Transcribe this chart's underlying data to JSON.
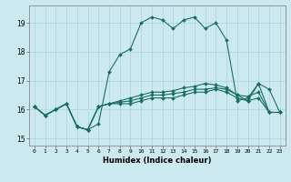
{
  "title": "",
  "xlabel": "Humidex (Indice chaleur)",
  "bg_color": "#cce9f0",
  "grid_color": "#a8d4dc",
  "line_color": "#1a7060",
  "xlim": [
    -0.5,
    23.5
  ],
  "ylim": [
    14.75,
    19.6
  ],
  "yticks": [
    15,
    16,
    17,
    18,
    19
  ],
  "xticks": [
    0,
    1,
    2,
    3,
    4,
    5,
    6,
    7,
    8,
    9,
    10,
    11,
    12,
    13,
    14,
    15,
    16,
    17,
    18,
    19,
    20,
    21,
    22,
    23
  ],
  "curves": [
    {
      "x": [
        0,
        1,
        2,
        3,
        4,
        5,
        6,
        7,
        8,
        9,
        10,
        11,
        12,
        13,
        14,
        15,
        16,
        17,
        18,
        19,
        20,
        21,
        22,
        23
      ],
      "y": [
        16.1,
        15.8,
        16.0,
        16.2,
        15.4,
        15.3,
        15.5,
        17.3,
        17.9,
        18.1,
        19.0,
        19.2,
        19.1,
        18.8,
        19.1,
        19.2,
        18.8,
        19.0,
        18.4,
        16.3,
        16.4,
        16.9,
        16.7,
        15.9
      ]
    },
    {
      "x": [
        0,
        1,
        2,
        3,
        4,
        5,
        6,
        7,
        8,
        9,
        10,
        11,
        12,
        13,
        14,
        15,
        16,
        17,
        18,
        19,
        20,
        21,
        22,
        23
      ],
      "y": [
        16.1,
        15.8,
        16.0,
        16.2,
        15.4,
        15.3,
        16.1,
        16.2,
        16.2,
        16.2,
        16.3,
        16.4,
        16.4,
        16.4,
        16.5,
        16.6,
        16.6,
        16.7,
        16.6,
        16.4,
        16.3,
        16.4,
        15.9,
        15.9
      ]
    },
    {
      "x": [
        0,
        1,
        2,
        3,
        4,
        5,
        6,
        7,
        8,
        9,
        10,
        11,
        12,
        13,
        14,
        15,
        16,
        17,
        18,
        19,
        20,
        21,
        22,
        23
      ],
      "y": [
        16.1,
        15.8,
        16.0,
        16.2,
        15.4,
        15.3,
        16.1,
        16.2,
        16.25,
        16.3,
        16.4,
        16.5,
        16.5,
        16.55,
        16.6,
        16.7,
        16.7,
        16.75,
        16.7,
        16.5,
        16.45,
        16.6,
        15.9,
        15.9
      ]
    },
    {
      "x": [
        0,
        1,
        2,
        3,
        4,
        5,
        6,
        7,
        8,
        9,
        10,
        11,
        12,
        13,
        14,
        15,
        16,
        17,
        18,
        19,
        20,
        21,
        22,
        23
      ],
      "y": [
        16.1,
        15.8,
        16.0,
        16.2,
        15.4,
        15.3,
        16.1,
        16.2,
        16.3,
        16.4,
        16.5,
        16.6,
        16.6,
        16.65,
        16.75,
        16.8,
        16.9,
        16.85,
        16.75,
        16.5,
        16.3,
        16.9,
        15.9,
        15.9
      ]
    }
  ]
}
